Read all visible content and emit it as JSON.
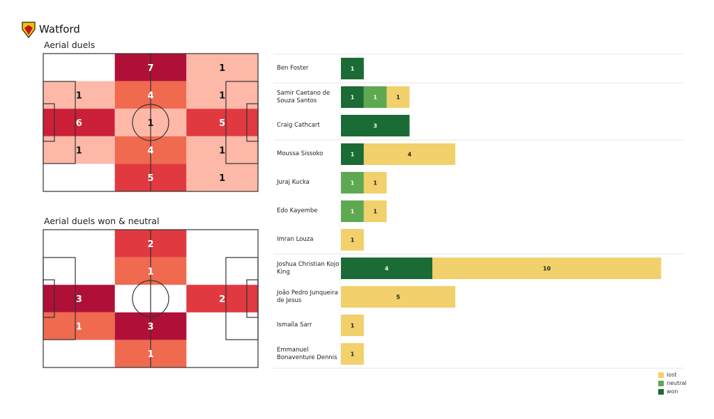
{
  "header": {
    "team": "Watford",
    "logo_icon": "watford-crest-icon"
  },
  "colors": {
    "won": "#1a6b35",
    "neutral": "#5fa852",
    "lost": "#f2d06b",
    "heat": [
      "#fdb8a8",
      "#f06a50",
      "#e03a40",
      "#cc2038",
      "#b01038"
    ]
  },
  "chart_data": [
    {
      "type": "heatmap",
      "title": "Aerial duels",
      "grid_rows": 5,
      "grid_cols": 3,
      "values": [
        [
          0,
          7,
          1
        ],
        [
          1,
          4,
          1
        ],
        [
          6,
          1,
          5
        ],
        [
          1,
          4,
          1
        ],
        [
          0,
          5,
          1
        ]
      ]
    },
    {
      "type": "heatmap",
      "title": "Aerial duels won & neutral",
      "grid_rows": 5,
      "grid_cols": 3,
      "values": [
        [
          0,
          2,
          0
        ],
        [
          0,
          1,
          0
        ],
        [
          3,
          0,
          2
        ],
        [
          1,
          3,
          0
        ],
        [
          0,
          1,
          0
        ]
      ]
    },
    {
      "type": "bar",
      "orientation": "horizontal",
      "stacked": true,
      "legend": [
        "lost",
        "neutral",
        "won"
      ],
      "legend_placement": "bottom-right",
      "players": [
        {
          "name": "Ben Foster",
          "won": 1,
          "neutral": 0,
          "lost": 0
        },
        {
          "name": "Samir Caetano de Souza Santos",
          "won": 1,
          "neutral": 1,
          "lost": 1
        },
        {
          "name": "Craig Cathcart",
          "won": 3,
          "neutral": 0,
          "lost": 0
        },
        {
          "name": "Moussa Sissoko",
          "won": 1,
          "neutral": 0,
          "lost": 4
        },
        {
          "name": "Juraj Kucka",
          "won": 0,
          "neutral": 1,
          "lost": 1
        },
        {
          "name": "Edo Kayembe",
          "won": 0,
          "neutral": 1,
          "lost": 1
        },
        {
          "name": "Imran Louza",
          "won": 0,
          "neutral": 0,
          "lost": 1
        },
        {
          "name": "Joshua Christian Kojo King",
          "won": 4,
          "neutral": 0,
          "lost": 10
        },
        {
          "name": "João Pedro Junqueira de Jesus",
          "won": 0,
          "neutral": 0,
          "lost": 5
        },
        {
          "name": "Ismaïla Sarr",
          "won": 0,
          "neutral": 0,
          "lost": 1
        },
        {
          "name": "Emmanuel Bonaventure Dennis",
          "won": 0,
          "neutral": 0,
          "lost": 1
        }
      ],
      "group_separators_after": [
        0,
        2,
        6
      ]
    }
  ]
}
